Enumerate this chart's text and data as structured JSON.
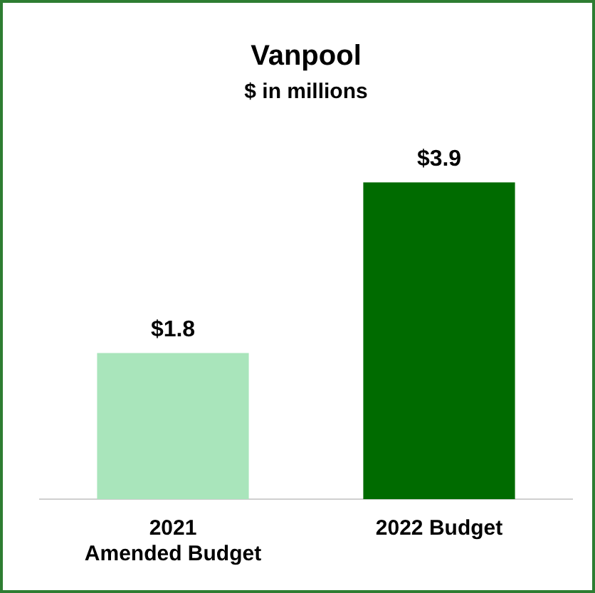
{
  "chart_data": {
    "type": "bar",
    "title": "Vanpool",
    "subtitle": "$ in millions",
    "categories": [
      "2021\nAmended Budget",
      "2022 Budget"
    ],
    "values": [
      1.8,
      3.9
    ],
    "colors": [
      "#a9e5bb",
      "#006b00"
    ],
    "value_labels": [
      "$1.8",
      "$3.9"
    ],
    "grid": false,
    "legend": false
  }
}
